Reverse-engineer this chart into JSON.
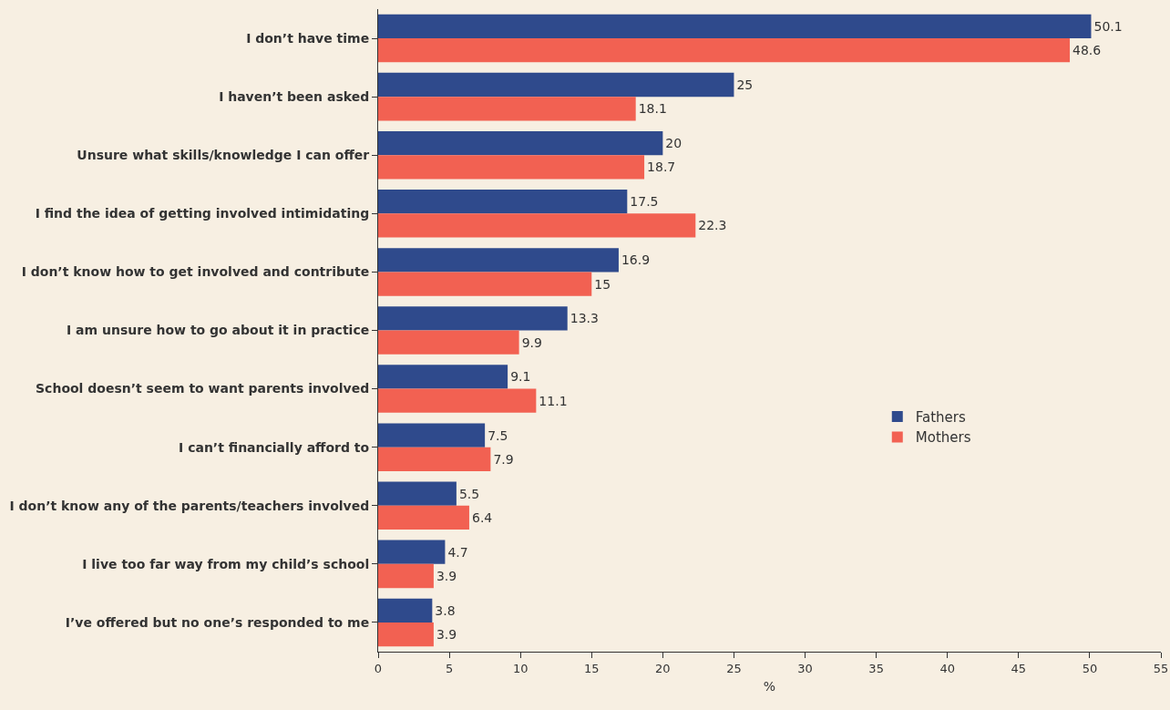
{
  "chart_data": {
    "type": "bar",
    "orientation": "horizontal",
    "xlabel": "%",
    "categories": [
      "I don’t have time",
      "I haven’t been asked",
      "Unsure what skills/knowledge I can offer",
      "I find the idea of getting involved intimidating",
      "I don’t know how to get involved and contribute",
      "I am unsure how to go about it in practice",
      "School doesn’t seem to want parents involved",
      "I can’t financially afford to",
      "I don’t know any of the parents/teachers involved",
      "I live too far way from my child’s school",
      "I’ve offered but no one’s responded to me"
    ],
    "series": [
      {
        "name": "Fathers",
        "color": "#2f4a8c",
        "values": [
          50.1,
          25,
          20,
          17.5,
          16.9,
          13.3,
          9.1,
          7.5,
          5.5,
          4.7,
          3.8
        ]
      },
      {
        "name": "Mothers",
        "color": "#f26152",
        "values": [
          48.6,
          18.1,
          18.7,
          22.3,
          15,
          9.9,
          11.1,
          7.9,
          6.4,
          3.9,
          3.9
        ]
      }
    ],
    "xlim": [
      0,
      55
    ],
    "xticks": [
      0,
      5,
      10,
      15,
      20,
      25,
      30,
      35,
      40,
      45,
      50,
      55
    ],
    "data_labels": true,
    "grid": false,
    "legend": "right"
  }
}
